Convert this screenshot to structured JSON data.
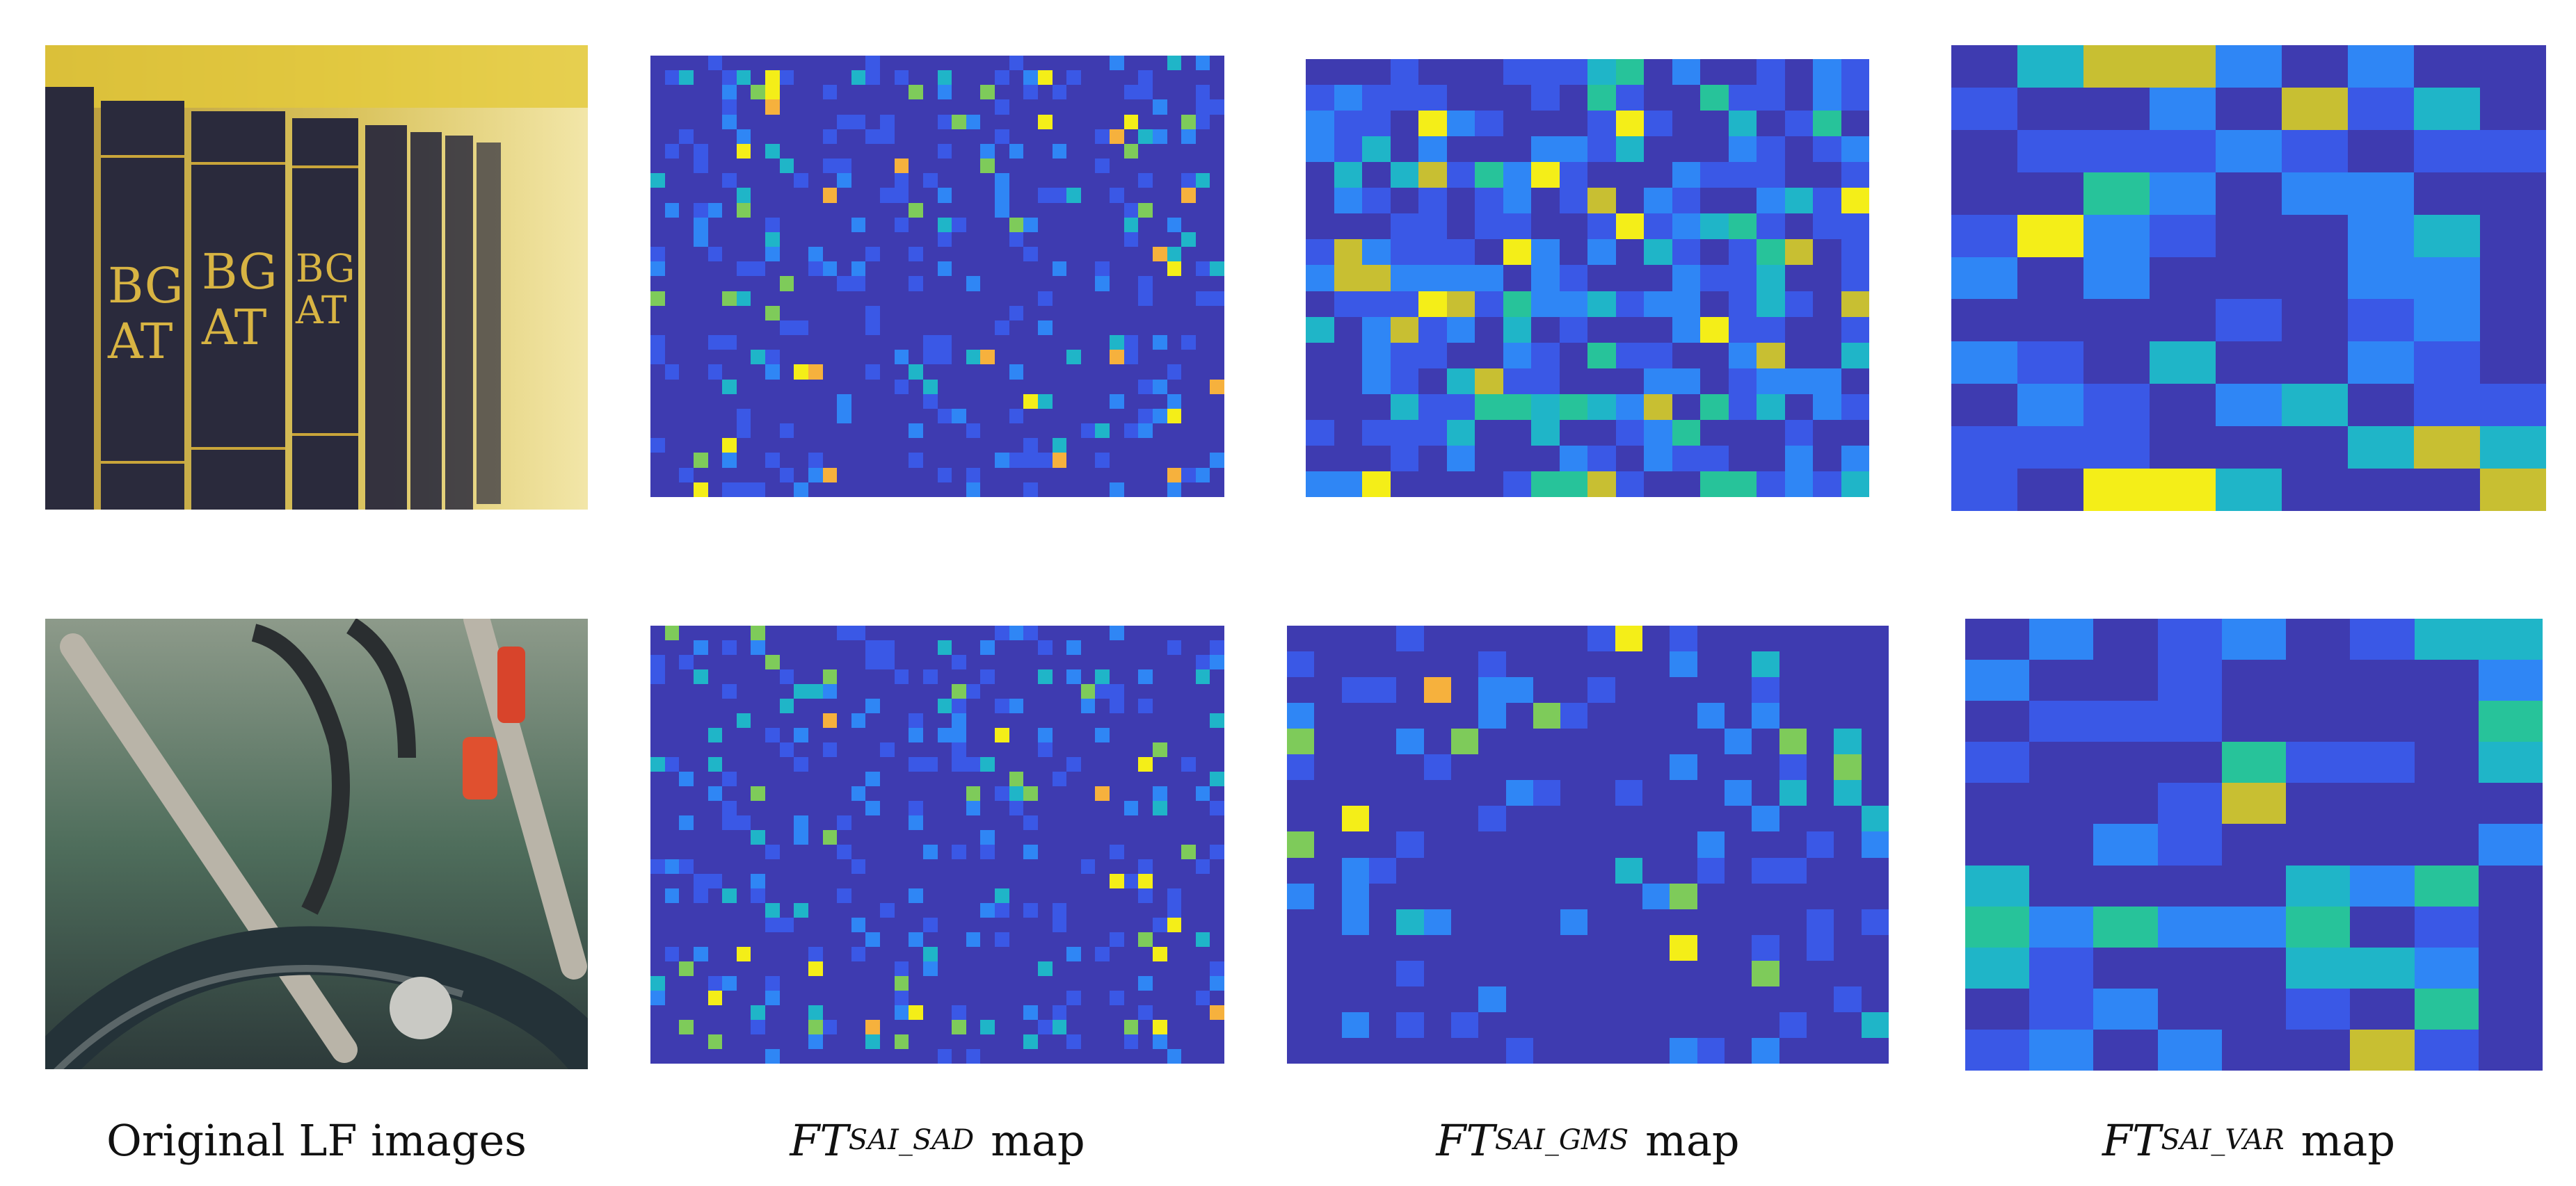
{
  "captions": {
    "original": "Original LF images",
    "sad_main": "FT",
    "sad_sub": "SAI_SAD",
    "gms_main": "FT",
    "gms_sub": "SAI_GMS",
    "var_main": "FT",
    "var_sub": "SAI_VAR",
    "map_word": "map"
  },
  "colormap": {
    "base": "#3e3bb0",
    "blue": "#3a58e6",
    "light_blue": "#2f86f5",
    "cyan": "#1fb5c8",
    "teal": "#27c39a",
    "green": "#7ecb5a",
    "yellow_green": "#c8bf32",
    "orange": "#f6b13d",
    "yellow": "#f4ee18"
  }
}
